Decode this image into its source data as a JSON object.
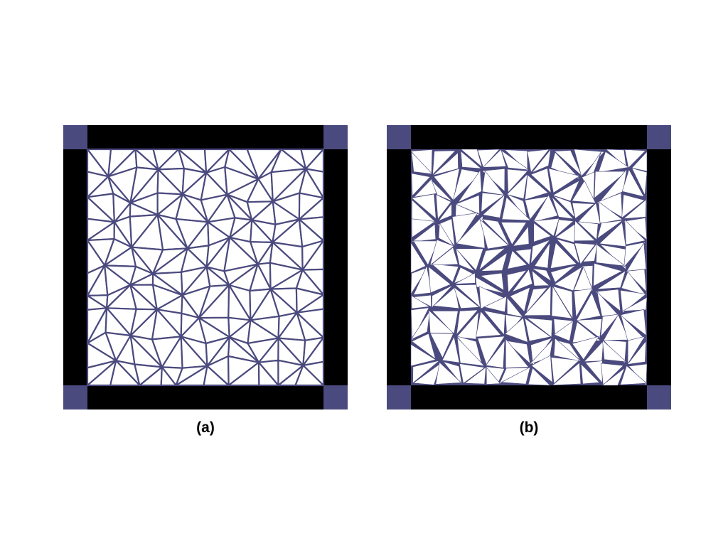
{
  "panels": [
    {
      "id": "a",
      "label": "(a)",
      "state": "intact-mesh"
    },
    {
      "id": "b",
      "label": "(b)",
      "state": "fractured-mesh"
    }
  ],
  "colors": {
    "frame": "#000000",
    "corner": "#4b4a7e",
    "edge": "#4b4a7e",
    "fill": "#ffffff",
    "background": "#ffffff"
  },
  "mesh": {
    "grid": 10,
    "seed": 7
  }
}
